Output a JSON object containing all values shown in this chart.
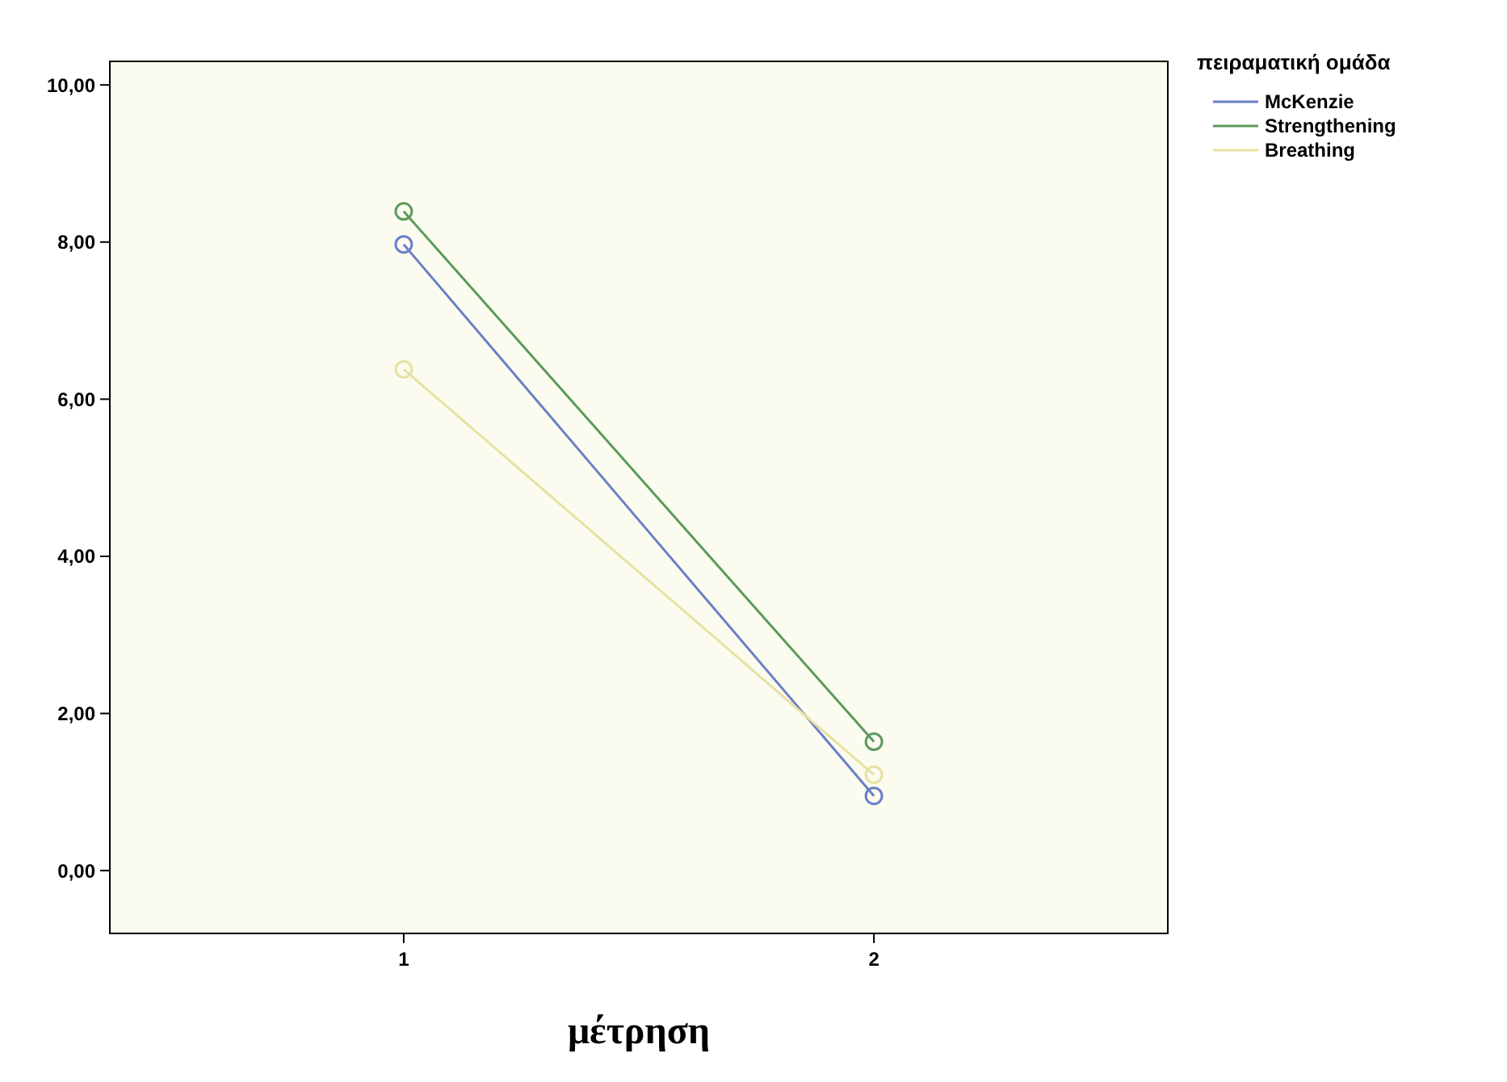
{
  "chart_data": {
    "type": "line",
    "xlabel": "μέτρηση",
    "legend_title": "πειραματική ομάδα",
    "categories": [
      "1",
      "2"
    ],
    "series": [
      {
        "name": "McKenzie",
        "color": "#6b7fc8",
        "values": [
          7.97,
          0.95
        ]
      },
      {
        "name": "Strengthening",
        "color": "#5c9a5c",
        "values": [
          8.39,
          1.64
        ]
      },
      {
        "name": "Breathing",
        "color": "#e6e2a0",
        "values": [
          6.38,
          1.22
        ]
      }
    ],
    "ylim": [
      -0.8,
      10.3
    ],
    "yticks": [
      {
        "value": 0,
        "label": "0,00"
      },
      {
        "value": 2,
        "label": "2,00"
      },
      {
        "value": 4,
        "label": "4,00"
      },
      {
        "value": 6,
        "label": "6,00"
      },
      {
        "value": 8,
        "label": "8,00"
      },
      {
        "value": 10,
        "label": "10,00"
      }
    ],
    "marker": "circle",
    "line_style": "solid",
    "legend": "top right",
    "grid": false
  }
}
